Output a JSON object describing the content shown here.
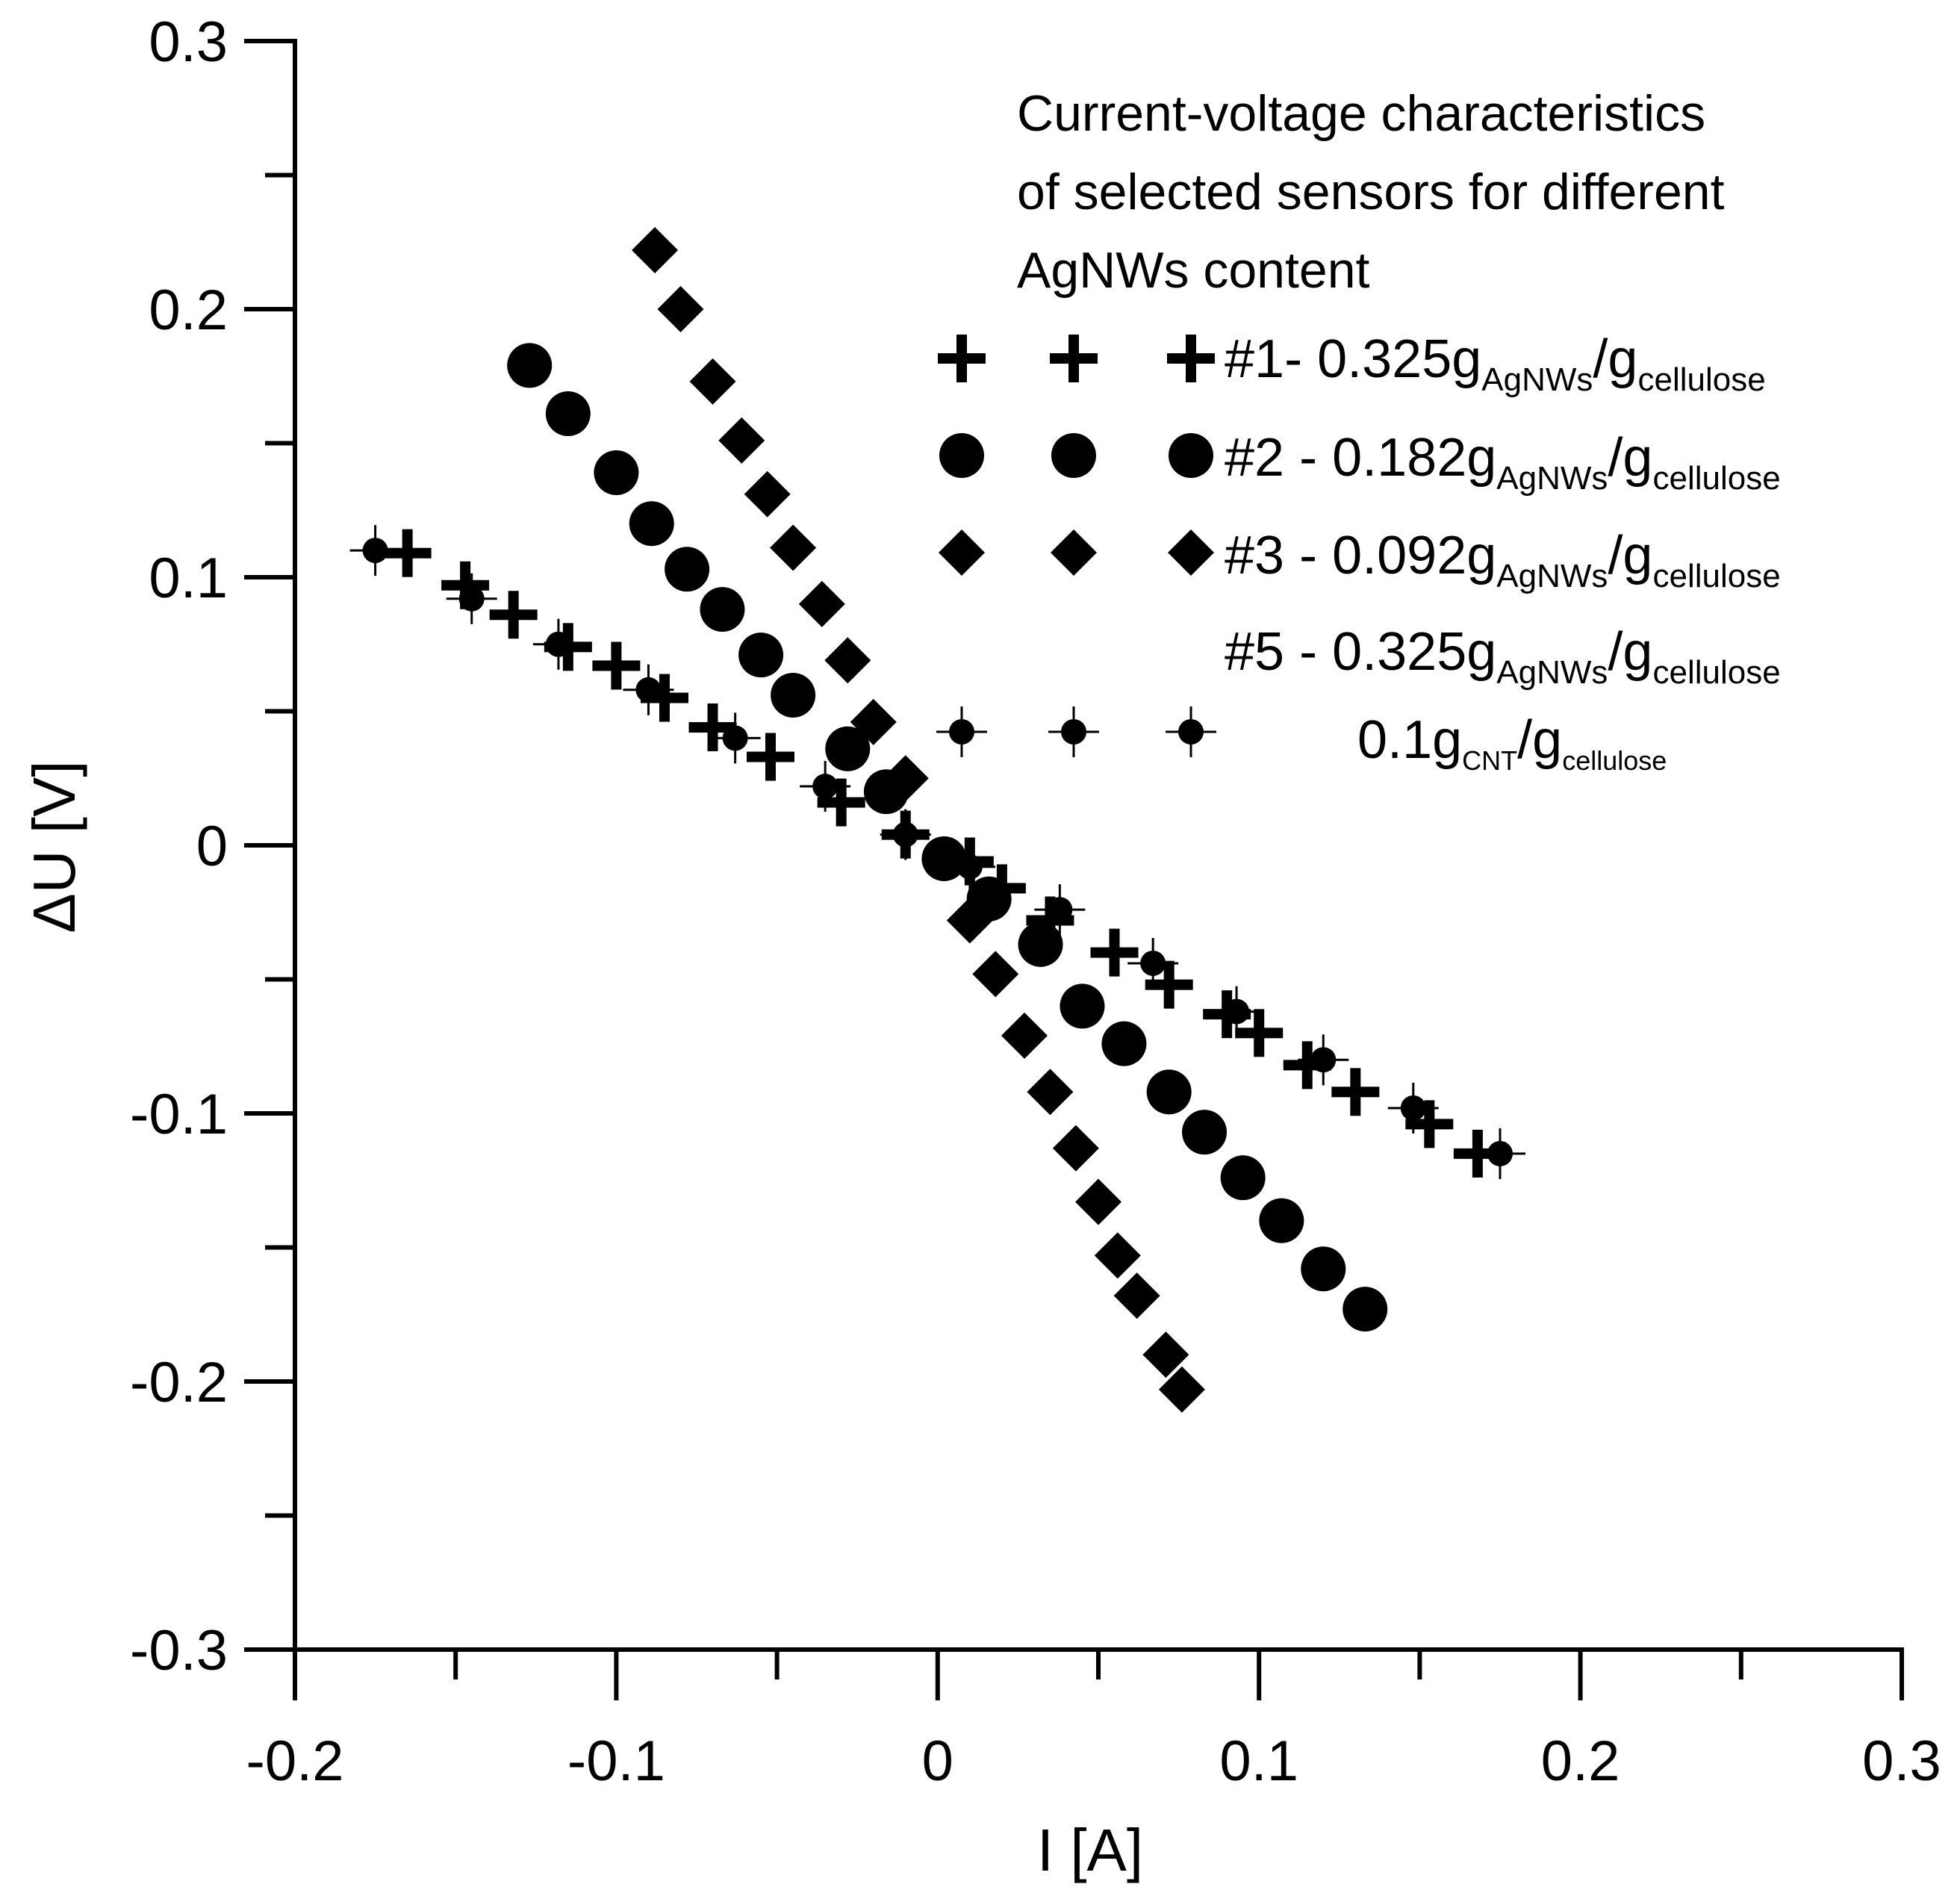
{
  "chart_data": {
    "type": "scatter",
    "title": "",
    "xlabel": "I [A]",
    "ylabel": "ΔU [V]",
    "xlim": [
      -0.2,
      0.3
    ],
    "ylim": [
      -0.3,
      0.3
    ],
    "x_ticks": [
      "-0.2",
      "-0.1",
      "0",
      "0.1",
      "0.2",
      "0.3"
    ],
    "y_ticks": [
      "-0.3",
      "-0.2",
      "-0.1",
      "0",
      "0.1",
      "0.2",
      "0.3"
    ],
    "grid": false,
    "legend": {
      "position": "top-right",
      "title_lines": [
        "Current-voltage characteristics",
        "of selected sensors for different",
        "AgNWs content"
      ],
      "entries": [
        {
          "id": "s1",
          "marker": "cross",
          "parts": {
            "lead": "#1- 0.325g",
            "sub1": "AgNWs",
            "mid": "/g",
            "sub2": "cellulose"
          }
        },
        {
          "id": "s2",
          "marker": "circle",
          "parts": {
            "lead": "#2 - 0.182g",
            "sub1": "AgNWs",
            "mid": "/g",
            "sub2": "cellulose"
          }
        },
        {
          "id": "s3",
          "marker": "diamond",
          "parts": {
            "lead": "#3 - 0.092g",
            "sub1": "AgNWs",
            "mid": "/g",
            "sub2": "cellulose"
          }
        },
        {
          "id": "s5",
          "marker": "dotcross",
          "parts": {
            "lead": "#5 - 0.325g",
            "sub1": "AgNWs",
            "mid": "/g",
            "sub2": "cellulose"
          },
          "parts2": {
            "lead": "0.1g",
            "sub1": "CNT",
            "mid": "/g",
            "sub2": "cellulose"
          }
        }
      ]
    },
    "series": [
      {
        "name": "#1- 0.325g AgNWs/g cellulose",
        "marker": "cross",
        "x": [
          -0.165,
          -0.147,
          -0.132,
          -0.115,
          -0.1,
          -0.085,
          -0.07,
          -0.052,
          -0.03,
          -0.01,
          0.01,
          0.02,
          0.035,
          0.055,
          0.072,
          0.09,
          0.1,
          0.115,
          0.13,
          0.153,
          0.168
        ],
        "y": [
          0.109,
          0.097,
          0.086,
          0.074,
          0.067,
          0.055,
          0.044,
          0.033,
          0.016,
          0.004,
          -0.006,
          -0.016,
          -0.028,
          -0.04,
          -0.052,
          -0.063,
          -0.07,
          -0.082,
          -0.092,
          -0.104,
          -0.115
        ]
      },
      {
        "name": "#2 - 0.182g AgNWs/g cellulose",
        "marker": "circle",
        "x": [
          -0.127,
          -0.115,
          -0.1,
          -0.089,
          -0.078,
          -0.067,
          -0.055,
          -0.045,
          -0.028,
          -0.016,
          0.002,
          0.016,
          0.032,
          0.045,
          0.058,
          0.072,
          0.083,
          0.095,
          0.107,
          0.12,
          0.133
        ],
        "y": [
          0.179,
          0.161,
          0.139,
          0.12,
          0.103,
          0.088,
          0.071,
          0.056,
          0.036,
          0.02,
          -0.005,
          -0.02,
          -0.037,
          -0.06,
          -0.074,
          -0.092,
          -0.107,
          -0.124,
          -0.14,
          -0.158,
          -0.173
        ]
      },
      {
        "name": "#3 - 0.092g AgNWs/g cellulose",
        "marker": "diamond",
        "x": [
          -0.088,
          -0.08,
          -0.07,
          -0.061,
          -0.053,
          -0.045,
          -0.036,
          -0.028,
          -0.02,
          -0.01,
          0.01,
          0.018,
          0.027,
          0.035,
          0.043,
          0.05,
          0.056,
          0.062,
          0.071,
          0.076
        ],
        "y": [
          0.222,
          0.2,
          0.173,
          0.151,
          0.131,
          0.111,
          0.09,
          0.069,
          0.046,
          0.025,
          -0.028,
          -0.048,
          -0.071,
          -0.092,
          -0.113,
          -0.133,
          -0.153,
          -0.168,
          -0.19,
          -0.203
        ]
      },
      {
        "name": "#5 - 0.325g AgNWs/g cellulose 0.1g CNT/g cellulose",
        "marker": "dotcross",
        "x": [
          -0.175,
          -0.145,
          -0.118,
          -0.09,
          -0.063,
          -0.035,
          -0.01,
          0.01,
          0.038,
          0.067,
          0.093,
          0.12,
          0.148,
          0.175
        ],
        "y": [
          0.11,
          0.092,
          0.075,
          0.058,
          0.04,
          0.022,
          0.004,
          -0.008,
          -0.024,
          -0.044,
          -0.062,
          -0.08,
          -0.098,
          -0.115
        ]
      }
    ]
  }
}
